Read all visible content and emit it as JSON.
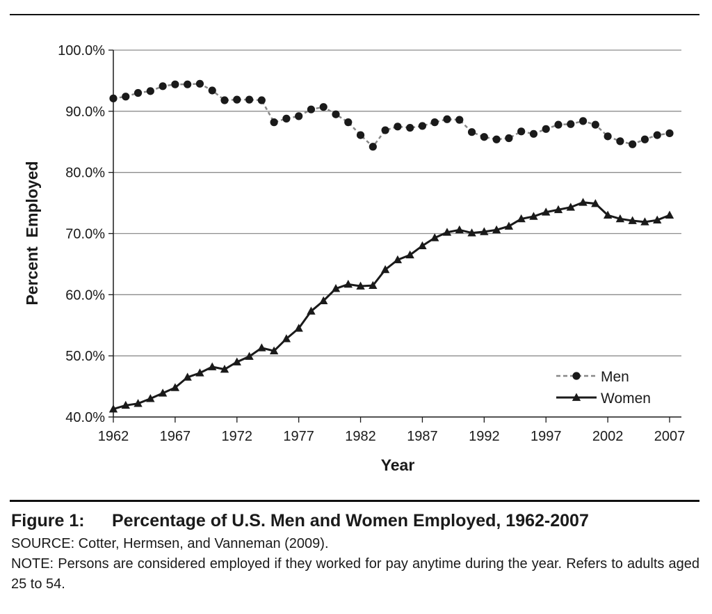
{
  "chart_data": {
    "type": "line",
    "xlabel": "Year",
    "ylabel": "Percent  Employed",
    "ylim": [
      40,
      100
    ],
    "xlim": [
      1962,
      2008
    ],
    "yticks": [
      "40.0%",
      "50.0%",
      "60.0%",
      "70.0%",
      "80.0%",
      "90.0%",
      "100.0%"
    ],
    "ytick_values": [
      40,
      50,
      60,
      70,
      80,
      90,
      100
    ],
    "xticks": [
      "1962",
      "1967",
      "1972",
      "1977",
      "1982",
      "1987",
      "1992",
      "1997",
      "2002",
      "2007"
    ],
    "xtick_values": [
      1962,
      1967,
      1972,
      1977,
      1982,
      1987,
      1992,
      1997,
      2002,
      2007
    ],
    "grid": "horizontal",
    "legend_position": "bottom-right",
    "x": [
      1962,
      1963,
      1964,
      1965,
      1966,
      1967,
      1968,
      1969,
      1970,
      1971,
      1972,
      1973,
      1974,
      1975,
      1976,
      1977,
      1978,
      1979,
      1980,
      1981,
      1982,
      1983,
      1984,
      1985,
      1986,
      1987,
      1988,
      1989,
      1990,
      1991,
      1992,
      1993,
      1994,
      1995,
      1996,
      1997,
      1998,
      1999,
      2000,
      2001,
      2002,
      2003,
      2004,
      2005,
      2006,
      2007
    ],
    "series": [
      {
        "name": "Men",
        "style": "dashed-circle",
        "color": "#888888",
        "marker_color": "#1a1a1a",
        "values": [
          92.1,
          92.4,
          93.0,
          93.3,
          94.1,
          94.4,
          94.4,
          94.5,
          93.4,
          91.8,
          91.9,
          91.9,
          91.8,
          88.2,
          88.8,
          89.2,
          90.3,
          90.7,
          89.5,
          88.2,
          86.1,
          84.2,
          86.9,
          87.5,
          87.3,
          87.6,
          88.2,
          88.7,
          88.6,
          86.6,
          85.8,
          85.4,
          85.6,
          86.7,
          86.3,
          87.1,
          87.8,
          87.9,
          88.4,
          87.8,
          85.9,
          85.1,
          84.6,
          85.4,
          86.1,
          86.4
        ]
      },
      {
        "name": "Women",
        "style": "solid-triangle",
        "color": "#1a1a1a",
        "marker_color": "#1a1a1a",
        "values": [
          41.3,
          41.9,
          42.2,
          43.0,
          43.9,
          44.8,
          46.5,
          47.2,
          48.2,
          47.8,
          49.0,
          49.9,
          51.3,
          50.8,
          52.8,
          54.5,
          57.3,
          59.0,
          61.0,
          61.7,
          61.4,
          61.5,
          64.1,
          65.7,
          66.5,
          68.0,
          69.3,
          70.2,
          70.6,
          70.1,
          70.3,
          70.6,
          71.2,
          72.4,
          72.8,
          73.5,
          73.9,
          74.3,
          75.1,
          74.9,
          73.0,
          72.4,
          72.1,
          71.9,
          72.2,
          73.0
        ]
      }
    ]
  },
  "caption": {
    "figure_number": "Figure 1:",
    "title": "Percentage of U.S. Men and Women Employed, 1962-2007",
    "source": "SOURCE: Cotter, Hermsen, and Vanneman (2009).",
    "note": "NOTE: Persons are considered employed if they worked for pay anytime during the year. Refers to adults aged 25 to 54."
  }
}
